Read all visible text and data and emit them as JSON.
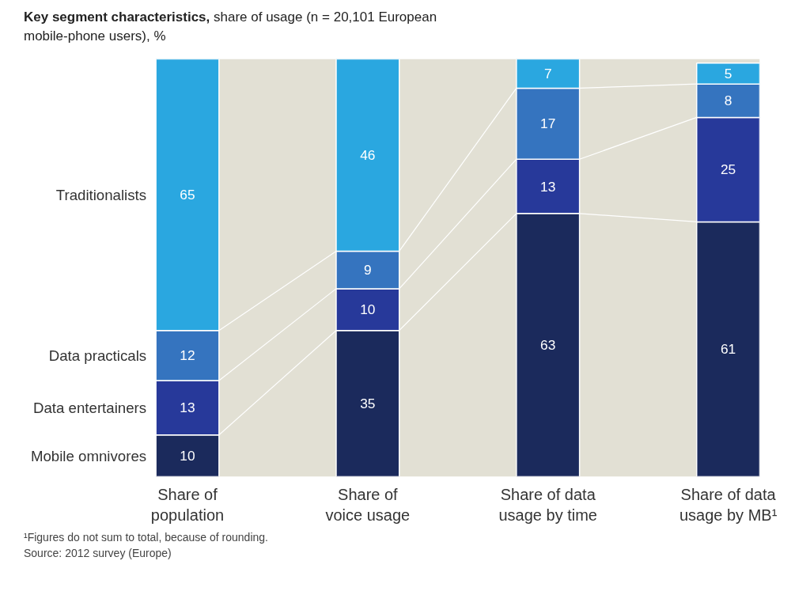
{
  "chart_data": {
    "type": "bar",
    "stacked": true,
    "title": "Key segment characteristics,",
    "subtitle": "share of usage (n = 20,101 European mobile-phone users), %",
    "categories": [
      "Share of population",
      "Share of voice usage",
      "Share of data usage by time",
      "Share of data usage by MB¹"
    ],
    "series": [
      {
        "name": "Mobile omnivores",
        "color": "#1b2a5c",
        "values": [
          10,
          35,
          63,
          61
        ]
      },
      {
        "name": "Data entertainers",
        "color": "#27399a",
        "values": [
          13,
          10,
          13,
          25
        ]
      },
      {
        "name": "Data practicals",
        "color": "#3574bf",
        "values": [
          12,
          9,
          17,
          8
        ]
      },
      {
        "name": "Traditionalists",
        "color": "#2aa7e0",
        "values": [
          65,
          46,
          7,
          5
        ]
      }
    ],
    "data_labels": true,
    "grid": false,
    "annotations": [
      "¹Figures do not sum to total, because of rounding.",
      "Source: 2012 survey (Europe)"
    ]
  }
}
